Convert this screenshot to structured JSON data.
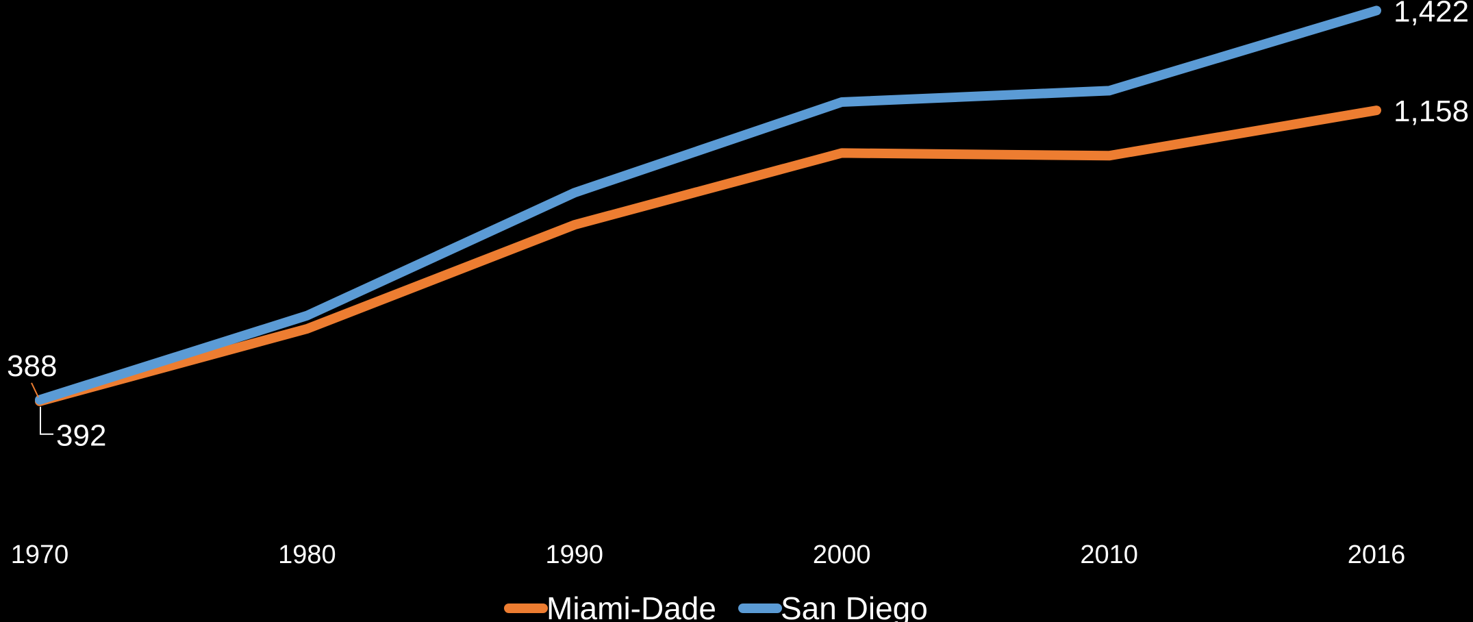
{
  "chart_data": {
    "type": "line",
    "categories": [
      "1970",
      "1980",
      "1990",
      "2000",
      "2010",
      "2016"
    ],
    "series": [
      {
        "name": "Miami-Dade",
        "color": "#ED7D31",
        "values": [
          388,
          580,
          855,
          1045,
          1038,
          1158
        ],
        "end_label": "1,158",
        "start_label": "388"
      },
      {
        "name": "San Diego",
        "color": "#5B9BD5",
        "values": [
          392,
          615,
          940,
          1180,
          1210,
          1422
        ],
        "end_label": "1,422",
        "start_label": "392"
      }
    ],
    "title": "",
    "xlabel": "",
    "ylabel": "",
    "ylim": [
      0,
      1450
    ],
    "grid": false,
    "legend": "bottom-center"
  }
}
